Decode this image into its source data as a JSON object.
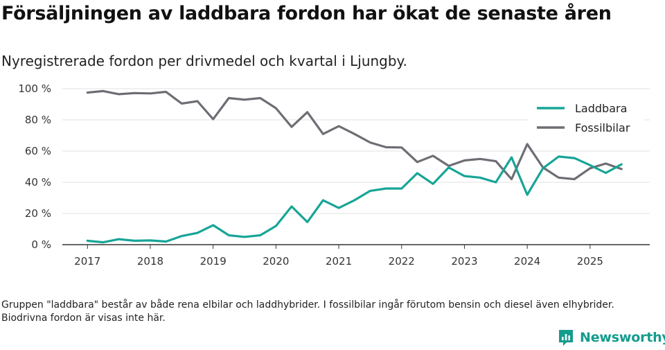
{
  "title": "Försäljningen av laddbara fordon har ökat de senaste åren",
  "subtitle": "Nyregistrerade fordon per drivmedel och kvartal i Ljungby.",
  "footnote": "Gruppen \"laddbara\" består av både rena elbilar och laddhybrider. I fossilbilar ingår förutom bensin och diesel även elhybrider. Biodrivna fordon är visas inte här.",
  "brand": {
    "name": "Newsworthy",
    "icon": "newsworthy-logo-icon"
  },
  "colors": {
    "laddbara": "#17a597",
    "fossilbilar": "#6e6d74",
    "grid": "#e2e2e2",
    "axis": "#333333"
  },
  "chart_data": {
    "type": "line",
    "title": "Försäljningen av laddbara fordon har ökat de senaste åren",
    "xlabel": "",
    "ylabel": "",
    "x": [
      2017.0,
      2017.25,
      2017.5,
      2017.75,
      2018.0,
      2018.25,
      2018.5,
      2018.75,
      2019.0,
      2019.25,
      2019.5,
      2019.75,
      2020.0,
      2020.25,
      2020.5,
      2020.75,
      2021.0,
      2021.25,
      2021.5,
      2021.75,
      2022.0,
      2022.25,
      2022.5,
      2022.75,
      2023.0,
      2023.25,
      2023.5,
      2023.75,
      2024.0,
      2024.25,
      2024.5,
      2024.75,
      2025.0,
      2025.25,
      2025.5
    ],
    "xlim": [
      2016.6,
      2025.95
    ],
    "ylim": [
      0,
      100
    ],
    "x_ticks": [
      2017,
      2018,
      2019,
      2020,
      2021,
      2022,
      2023,
      2024,
      2025
    ],
    "x_tick_labels": [
      "2017",
      "2018",
      "2019",
      "2020",
      "2021",
      "2022",
      "2023",
      "2024",
      "2025"
    ],
    "y_ticks": [
      0,
      20,
      40,
      60,
      80,
      100
    ],
    "y_tick_labels": [
      "0 %",
      "20 %",
      "40 %",
      "60 %",
      "80 %",
      "100 %"
    ],
    "grid": true,
    "legend_position": "top-right",
    "series": [
      {
        "name": "Laddbara",
        "color": "#17a597",
        "values": [
          2.5,
          1.5,
          3.5,
          2.5,
          2.7,
          2.0,
          5.5,
          7.5,
          12.5,
          6.0,
          5.0,
          6.0,
          12.0,
          24.5,
          14.5,
          28.5,
          23.5,
          28.5,
          34.5,
          36.0,
          36.0,
          45.8,
          39.0,
          49.5,
          44.0,
          43.0,
          40.0,
          56.0,
          32.0,
          49.0,
          56.5,
          55.5,
          51.0,
          46.0,
          51.5
        ]
      },
      {
        "name": "Fossilbilar",
        "color": "#6e6d74",
        "values": [
          97.5,
          98.5,
          96.5,
          97.2,
          97.0,
          98.0,
          90.5,
          92.0,
          80.5,
          94.0,
          93.0,
          94.0,
          87.5,
          75.5,
          85.0,
          71.0,
          76.0,
          71.0,
          65.5,
          62.5,
          62.3,
          53.0,
          57.0,
          50.5,
          54.0,
          55.0,
          53.5,
          42.0,
          64.5,
          49.5,
          43.0,
          42.0,
          49.0,
          52.0,
          48.5
        ]
      }
    ]
  }
}
